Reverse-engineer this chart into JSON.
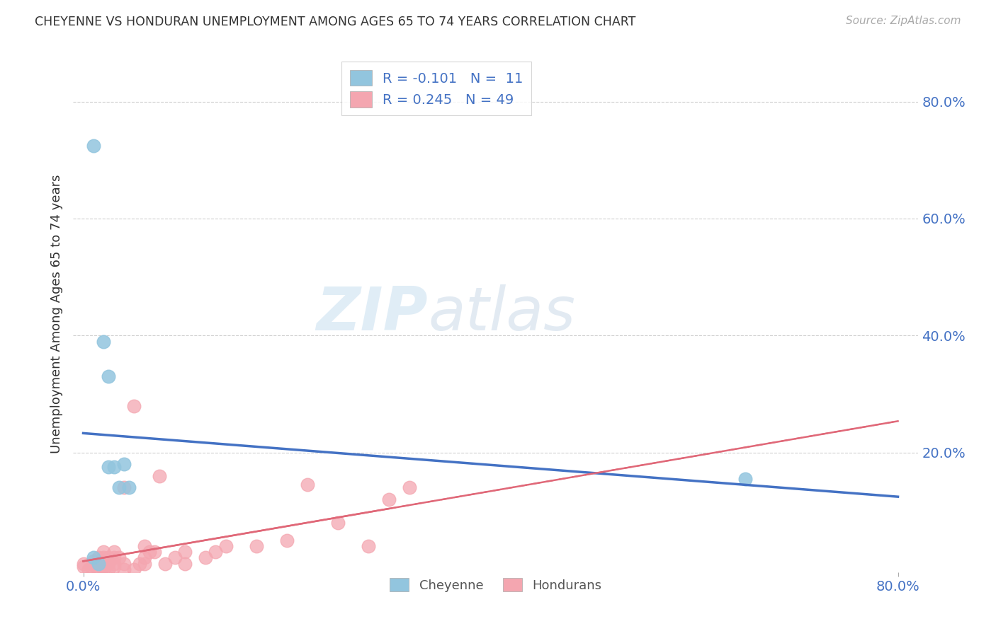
{
  "title": "CHEYENNE VS HONDURAN UNEMPLOYMENT AMONG AGES 65 TO 74 YEARS CORRELATION CHART",
  "source": "Source: ZipAtlas.com",
  "ylabel": "Unemployment Among Ages 65 to 74 years",
  "legend_label1": "Cheyenne",
  "legend_label2": "Hondurans",
  "cheyenne_R": "-0.101",
  "cheyenne_N": "11",
  "honduran_R": "0.245",
  "honduran_N": "49",
  "cheyenne_color": "#92c5de",
  "honduran_color": "#f4a6b0",
  "cheyenne_line_color": "#4472c4",
  "honduran_line_color": "#e06878",
  "legend_text_color": "#4472c4",
  "watermark_zip": "ZIP",
  "watermark_atlas": "atlas",
  "cheyenne_x": [
    0.01,
    0.01,
    0.015,
    0.02,
    0.025,
    0.025,
    0.03,
    0.035,
    0.04,
    0.045,
    0.65
  ],
  "cheyenne_y": [
    0.725,
    0.02,
    0.01,
    0.39,
    0.33,
    0.175,
    0.175,
    0.14,
    0.18,
    0.14,
    0.155
  ],
  "honduran_x": [
    0.0,
    0.0,
    0.005,
    0.008,
    0.01,
    0.01,
    0.012,
    0.015,
    0.015,
    0.015,
    0.02,
    0.02,
    0.02,
    0.02,
    0.02,
    0.025,
    0.025,
    0.025,
    0.03,
    0.03,
    0.03,
    0.03,
    0.035,
    0.04,
    0.04,
    0.04,
    0.05,
    0.05,
    0.055,
    0.06,
    0.06,
    0.06,
    0.065,
    0.07,
    0.075,
    0.08,
    0.09,
    0.1,
    0.1,
    0.12,
    0.13,
    0.14,
    0.17,
    0.2,
    0.22,
    0.25,
    0.28,
    0.3,
    0.32
  ],
  "honduran_y": [
    0.005,
    0.01,
    0.0,
    0.005,
    0.01,
    0.015,
    0.005,
    0.0,
    0.01,
    0.02,
    0.0,
    0.005,
    0.01,
    0.02,
    0.03,
    0.0,
    0.01,
    0.02,
    0.005,
    0.01,
    0.02,
    0.03,
    0.02,
    0.0,
    0.01,
    0.14,
    0.0,
    0.28,
    0.01,
    0.01,
    0.02,
    0.04,
    0.03,
    0.03,
    0.16,
    0.01,
    0.02,
    0.01,
    0.03,
    0.02,
    0.03,
    0.04,
    0.04,
    0.05,
    0.145,
    0.08,
    0.04,
    0.12,
    0.14
  ],
  "xlim": [
    -0.01,
    0.82
  ],
  "ylim": [
    -0.005,
    0.88
  ],
  "ytick_vals": [
    0.2,
    0.4,
    0.6,
    0.8
  ],
  "xtick_vals": [
    0.0,
    0.8
  ],
  "xtick_labels": [
    "0.0%",
    "80.0%"
  ],
  "ytick_labels": [
    "20.0%",
    "40.0%",
    "60.0%",
    "80.0%"
  ],
  "grid_color": "#d0d0d0",
  "bg_color": "#ffffff"
}
